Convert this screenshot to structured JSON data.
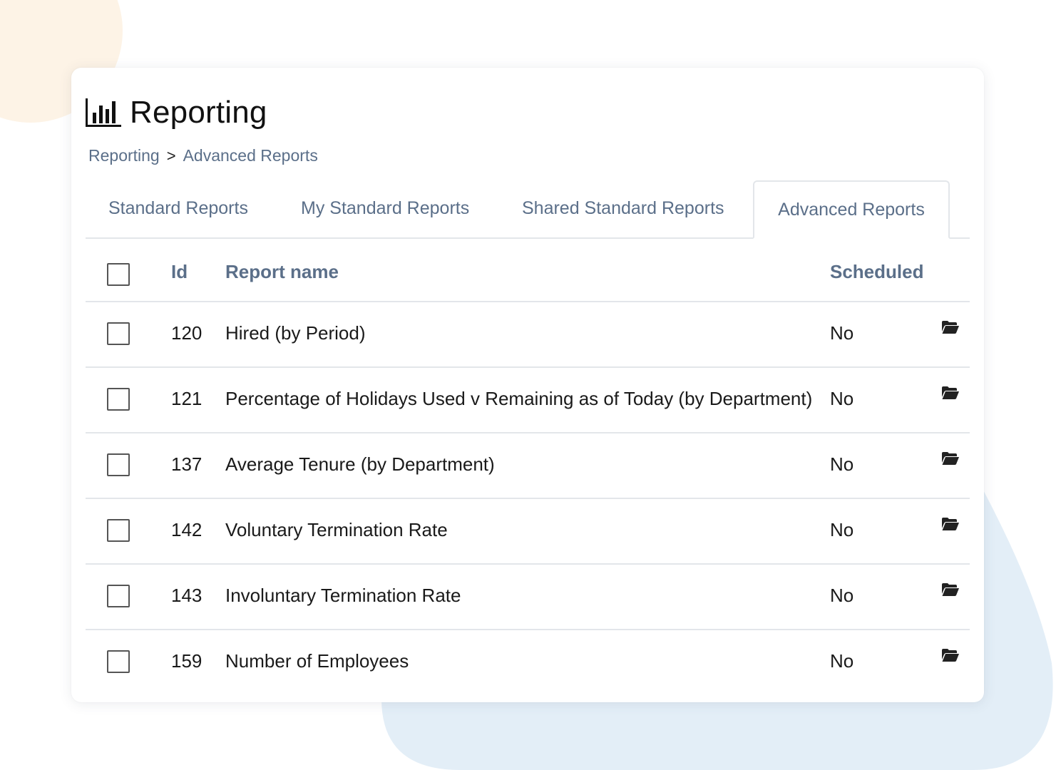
{
  "page": {
    "title": "Reporting",
    "title_icon": "bar-chart-icon"
  },
  "breadcrumb": {
    "items": [
      {
        "label": "Reporting"
      },
      {
        "label": "Advanced Reports"
      }
    ],
    "separator": ">"
  },
  "tabs": [
    {
      "label": "Standard Reports",
      "active": false
    },
    {
      "label": "My Standard Reports",
      "active": false
    },
    {
      "label": "Shared Standard Reports",
      "active": false
    },
    {
      "label": "Advanced Reports",
      "active": true
    }
  ],
  "table": {
    "columns": {
      "id": "Id",
      "name": "Report name",
      "scheduled": "Scheduled"
    },
    "rows": [
      {
        "id": "120",
        "name": "Hired (by Period)",
        "scheduled": "No",
        "action_icon": "folder-open-icon"
      },
      {
        "id": "121",
        "name": "Percentage of Holidays Used v Remaining as of Today (by Department)",
        "scheduled": "No",
        "action_icon": "folder-open-icon"
      },
      {
        "id": "137",
        "name": "Average Tenure (by Department)",
        "scheduled": "No",
        "action_icon": "folder-open-icon"
      },
      {
        "id": "142",
        "name": "Voluntary Termination Rate",
        "scheduled": "No",
        "action_icon": "folder-open-icon"
      },
      {
        "id": "143",
        "name": "Involuntary Termination Rate",
        "scheduled": "No",
        "action_icon": "folder-open-icon"
      },
      {
        "id": "159",
        "name": "Number of Employees",
        "scheduled": "No",
        "action_icon": "folder-open-icon"
      }
    ]
  },
  "colors": {
    "accent_text": "#5b6f89",
    "deco_peach": "#fdf3e6",
    "deco_blue": "#e3eef7",
    "border": "#e3e6ea"
  }
}
